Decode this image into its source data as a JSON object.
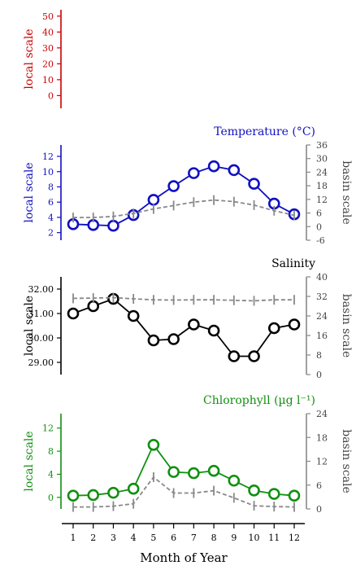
{
  "x_axis": {
    "label": "Month of Year",
    "ticks": [
      "1",
      "2",
      "3",
      "4",
      "5",
      "6",
      "7",
      "8",
      "9",
      "10",
      "11",
      "12"
    ]
  },
  "chart_data": [
    {
      "type": "line",
      "title": "",
      "color": "#cc0000",
      "left_axis": {
        "label": "local scale",
        "ylim": [
          -8,
          54
        ],
        "ticks": [
          0,
          10,
          20,
          30,
          40,
          50
        ]
      },
      "right_axis": null,
      "x": [
        1,
        2,
        3,
        4,
        5,
        6,
        7,
        8,
        9,
        10,
        11,
        12
      ],
      "series": []
    },
    {
      "type": "line",
      "title": "Temperature (°C)",
      "color": "#1010c0",
      "left_axis": {
        "label": "local scale",
        "ylim": [
          1,
          13.5
        ],
        "ticks": [
          2,
          4,
          6,
          8,
          10,
          12
        ]
      },
      "right_axis": {
        "label": "basin scale",
        "ylim": [
          -6,
          36
        ],
        "ticks": [
          -6,
          0,
          6,
          12,
          18,
          24,
          30,
          36
        ]
      },
      "x": [
        1,
        2,
        3,
        4,
        5,
        6,
        7,
        8,
        9,
        10,
        11,
        12
      ],
      "series": [
        {
          "axis": "left",
          "style": "circles",
          "values": [
            3.1,
            3.0,
            2.9,
            4.3,
            6.3,
            8.1,
            9.8,
            10.7,
            10.2,
            8.4,
            5.8,
            4.4
          ]
        },
        {
          "axis": "right",
          "style": "dashed",
          "values": [
            4.0,
            4.0,
            4.5,
            5.8,
            7.8,
            9.3,
            10.8,
            11.7,
            11.0,
            9.5,
            7.0,
            5.0
          ]
        }
      ]
    },
    {
      "type": "line",
      "title": "Salinity",
      "color": "#000000",
      "left_axis": {
        "label": "local scale",
        "ylim": [
          28.5,
          32.5
        ],
        "ticks": [
          "29.00",
          "30.00",
          "31.00",
          "32.00"
        ]
      },
      "right_axis": {
        "label": "basin scale",
        "ylim": [
          0,
          40
        ],
        "ticks": [
          0,
          8,
          16,
          24,
          32,
          40
        ]
      },
      "x": [
        1,
        2,
        3,
        4,
        5,
        6,
        7,
        8,
        9,
        10,
        11,
        12
      ],
      "series": [
        {
          "axis": "left",
          "style": "circles",
          "values": [
            31.0,
            31.3,
            31.6,
            30.9,
            29.9,
            29.95,
            30.55,
            30.3,
            29.25,
            29.25,
            30.4,
            30.55
          ]
        },
        {
          "axis": "right",
          "style": "dashed",
          "values": [
            31.2,
            31.3,
            31.5,
            31.0,
            30.6,
            30.5,
            30.6,
            30.6,
            30.4,
            30.2,
            30.6,
            30.6
          ]
        }
      ]
    },
    {
      "type": "line",
      "title": "Chlorophyll (µg l⁻¹)",
      "color": "#109010",
      "left_axis": {
        "label": "local scale",
        "ylim": [
          -2,
          14.5
        ],
        "ticks": [
          0,
          4,
          8,
          12
        ]
      },
      "right_axis": {
        "label": "basin scale",
        "ylim": [
          0,
          24
        ],
        "ticks": [
          0,
          6,
          12,
          18,
          24
        ]
      },
      "x": [
        1,
        2,
        3,
        4,
        5,
        6,
        7,
        8,
        9,
        10,
        11,
        12
      ],
      "series": [
        {
          "axis": "left",
          "style": "circles",
          "values": [
            0.3,
            0.4,
            0.8,
            1.5,
            9.1,
            4.4,
            4.2,
            4.6,
            2.9,
            1.2,
            0.6,
            0.3
          ]
        },
        {
          "axis": "right",
          "style": "dashed",
          "values": [
            0.5,
            0.5,
            0.7,
            1.3,
            8.0,
            4.0,
            4.0,
            4.6,
            2.8,
            0.8,
            0.6,
            0.5
          ]
        }
      ]
    }
  ]
}
